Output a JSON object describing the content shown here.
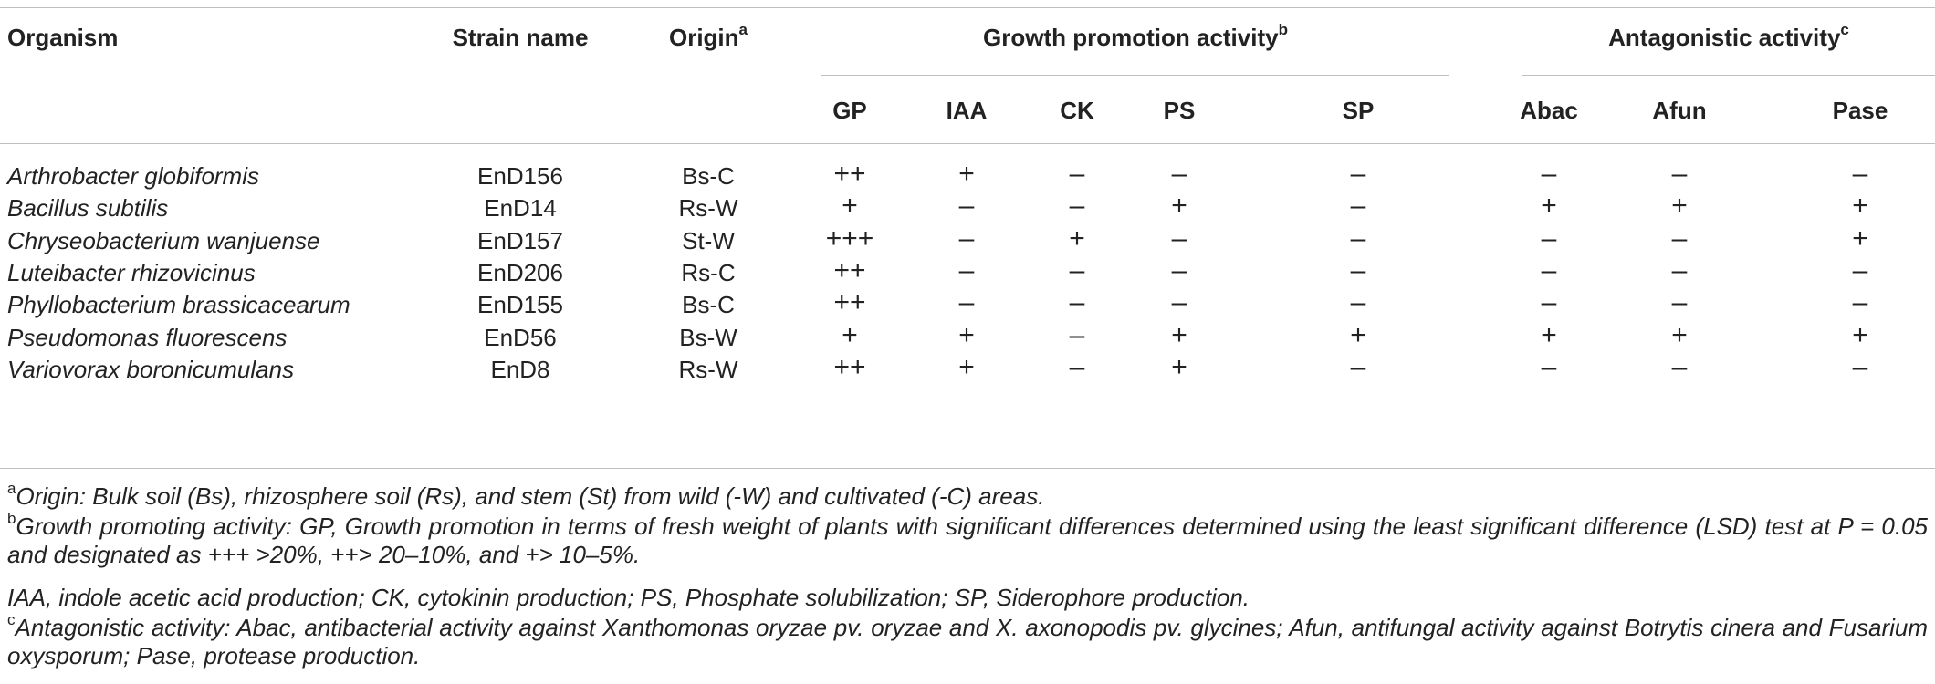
{
  "headers": {
    "organism": "Organism",
    "strain": "Strain name",
    "origin": "Origin",
    "origin_sup": "a",
    "growth_group": "Growth promotion activity",
    "growth_sup": "b",
    "antag_group": "Antagonistic activity",
    "antag_sup": "c",
    "sub": [
      "GP",
      "IAA",
      "CK",
      "PS",
      "SP",
      "Abac",
      "Afun",
      "Pase"
    ]
  },
  "rows": [
    {
      "organism": "Arthrobacter globiformis",
      "strain": "EnD156",
      "origin": "Bs-C",
      "vals": [
        "++",
        "+",
        "–",
        "–",
        "–",
        "–",
        "–",
        "–"
      ]
    },
    {
      "organism": "Bacillus subtilis",
      "strain": "EnD14",
      "origin": "Rs-W",
      "vals": [
        "+",
        "–",
        "–",
        "+",
        "–",
        "+",
        "+",
        "+"
      ]
    },
    {
      "organism": "Chryseobacterium wanjuense",
      "strain": "EnD157",
      "origin": "St-W",
      "vals": [
        "+++",
        "–",
        "+",
        "–",
        "–",
        "–",
        "–",
        "+"
      ]
    },
    {
      "organism": "Luteibacter rhizovicinus",
      "strain": "EnD206",
      "origin": "Rs-C",
      "vals": [
        "++",
        "–",
        "–",
        "–",
        "–",
        "–",
        "–",
        "–"
      ]
    },
    {
      "organism": "Phyllobacterium brassicacearum",
      "strain": "EnD155",
      "origin": "Bs-C",
      "vals": [
        "++",
        "–",
        "–",
        "–",
        "–",
        "–",
        "–",
        "–"
      ]
    },
    {
      "organism": "Pseudomonas fluorescens",
      "strain": "EnD56",
      "origin": "Bs-W",
      "vals": [
        "+",
        "+",
        "–",
        "+",
        "+",
        "+",
        "+",
        "+"
      ]
    },
    {
      "organism": "Variovorax boronicumulans",
      "strain": "EnD8",
      "origin": "Rs-W",
      "vals": [
        "++",
        "+",
        "–",
        "+",
        "–",
        "–",
        "–",
        "–"
      ]
    }
  ],
  "footnotes": {
    "a_sup": "a",
    "a_text": "Origin: Bulk soil (Bs), rhizosphere soil (Rs), and stem (St) from wild (-W) and cultivated (-C) areas.",
    "b_sup": "b",
    "b_text": "Growth promoting activity: GP, Growth promotion in terms of fresh weight of plants with significant differences determined using the least significant difference (LSD) test at P = 0.05 and designated as +++ >20%, ++> 20–10%, and +> 10–5%.",
    "b_text2": "IAA, indole acetic acid production; CK, cytokinin production; PS, Phosphate solubilization; SP, Siderophore production.",
    "c_sup": "c",
    "c_text": "Antagonistic activity: Abac, antibacterial activity against Xanthomonas oryzae pv. oryzae and X. axonopodis pv. glycines; Afun, antifungal activity against Botrytis cinera and Fusarium oxysporum; Pase, protease production."
  }
}
